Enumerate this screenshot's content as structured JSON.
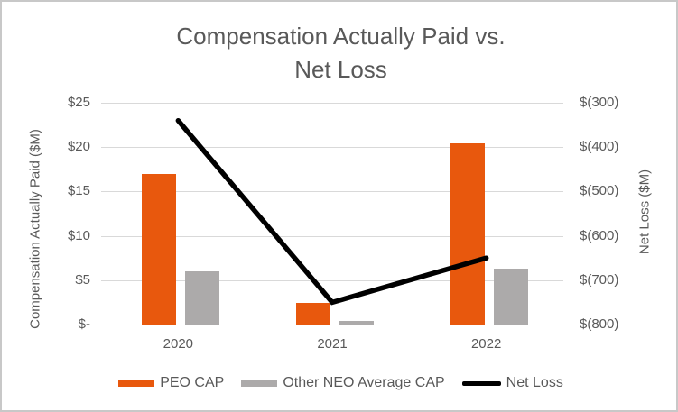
{
  "chart": {
    "title_lines": [
      "Compensation Actually Paid vs.",
      "Net Loss"
    ]
  },
  "chart_data": {
    "type": "combo",
    "title": "Compensation Actually Paid vs. Net Loss",
    "categories": [
      "2020",
      "2021",
      "2022"
    ],
    "series": [
      {
        "name": "PEO CAP",
        "type": "bar",
        "axis": "left",
        "color": "#e8580d",
        "values": [
          17.0,
          2.4,
          20.4
        ]
      },
      {
        "name": "Other NEO Average CAP",
        "type": "bar",
        "axis": "left",
        "color": "#acaaaa",
        "values": [
          6.0,
          0.4,
          6.3
        ]
      },
      {
        "name": "Net Loss",
        "type": "line",
        "axis": "right",
        "color": "#000000",
        "values": [
          -340,
          -750,
          -650
        ]
      }
    ],
    "left_axis": {
      "title": "Compensation Actually Paid ($M)",
      "tick_labels": [
        "$25",
        "$20",
        "$15",
        "$10",
        "$5",
        "$-"
      ],
      "min": 0,
      "max": 25,
      "step": 5
    },
    "right_axis": {
      "title": "Net Loss ($M)",
      "tick_labels": [
        "$(300)",
        "$(400)",
        "$(500)",
        "$(600)",
        "$(700)",
        "$(800)"
      ],
      "min": -800,
      "max": -300,
      "step": 100
    },
    "legend": {
      "position": "bottom",
      "entries": [
        "PEO CAP",
        "Other NEO Average CAP",
        "Net Loss"
      ]
    },
    "grid": true,
    "colors": {
      "text": "#595959",
      "gridline": "#d9d9d9",
      "axis_line": "#bfbfbf",
      "border": "#c8c8c8",
      "background": "#ffffff"
    }
  }
}
